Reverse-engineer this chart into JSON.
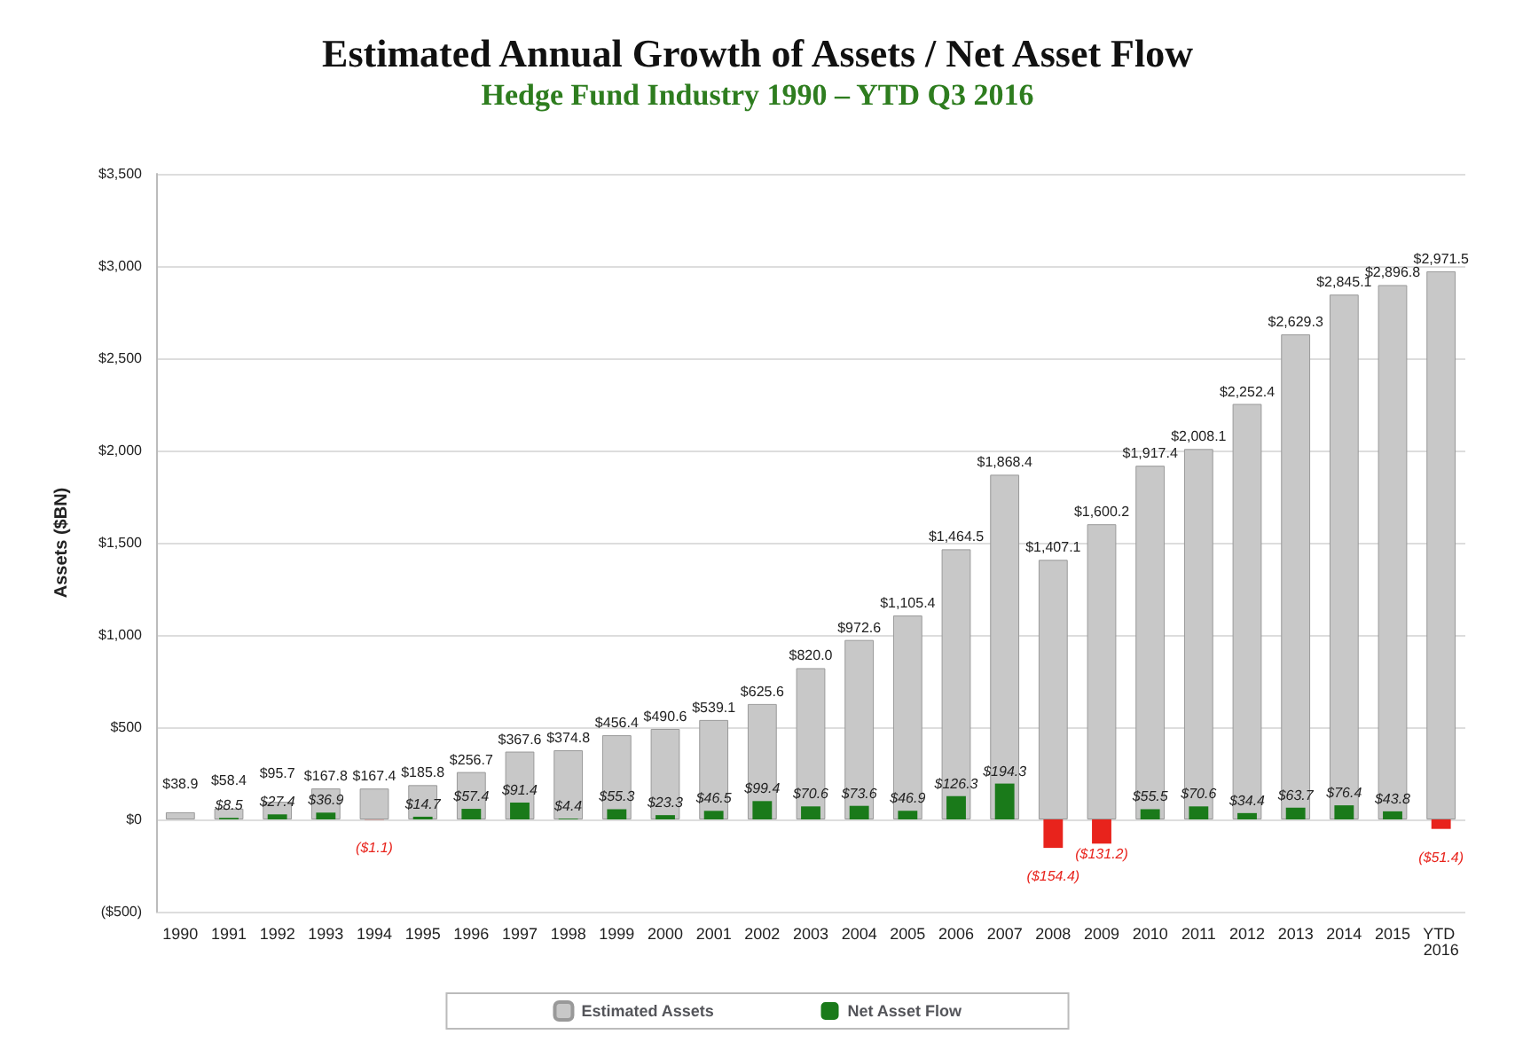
{
  "chart_data": {
    "type": "bar",
    "title": "Estimated Annual Growth of Assets / Net Asset Flow",
    "subtitle": "Hedge Fund Industry 1990 – YTD Q3 2016",
    "ylabel": "Assets ($BN)",
    "categories": [
      "1990",
      "1991",
      "1992",
      "1993",
      "1994",
      "1995",
      "1996",
      "1997",
      "1998",
      "1999",
      "2000",
      "2001",
      "2002",
      "2003",
      "2004",
      "2005",
      "2006",
      "2007",
      "2008",
      "2009",
      "2010",
      "2011",
      "2012",
      "2013",
      "2014",
      "2015",
      "YTD 2016"
    ],
    "series": [
      {
        "name": "Estimated Assets",
        "color": "#c8c8c8",
        "values": [
          38.9,
          58.4,
          95.7,
          167.8,
          167.4,
          185.8,
          256.7,
          367.6,
          374.8,
          456.4,
          490.6,
          539.1,
          625.6,
          820.0,
          972.6,
          1105.4,
          1464.5,
          1868.4,
          1407.1,
          1600.2,
          1917.4,
          2008.1,
          2252.4,
          2629.3,
          2845.1,
          2896.8,
          2971.5
        ],
        "value_labels": [
          "$38.9",
          "$58.4",
          "$95.7",
          "$167.8",
          "$167.4",
          "$185.8",
          "$256.7",
          "$367.6",
          "$374.8",
          "$456.4",
          "$490.6",
          "$539.1",
          "$625.6",
          "$820.0",
          "$972.6",
          "$1,105.4",
          "$1,464.5",
          "$1,868.4",
          "$1,407.1",
          "$1,600.2",
          "$1,917.4",
          "$2,008.1",
          "$2,252.4",
          "$2,629.3",
          "$2,845.1",
          "$2,896.8",
          "$2,971.5"
        ]
      },
      {
        "name": "Net Asset Flow",
        "color": "#1a7a1a",
        "colors": [
          "#1a7a1a",
          "#1a7a1a",
          "#1a7a1a",
          "#1a7a1a",
          "#e8231c",
          "#1a7a1a",
          "#1a7a1a",
          "#1a7a1a",
          "#1a7a1a",
          "#1a7a1a",
          "#1a7a1a",
          "#1a7a1a",
          "#1a7a1a",
          "#1a7a1a",
          "#1a7a1a",
          "#1a7a1a",
          "#1a7a1a",
          "#1a7a1a",
          "#e8231c",
          "#e8231c",
          "#1a7a1a",
          "#1a7a1a",
          "#1a7a1a",
          "#1a7a1a",
          "#1a7a1a",
          "#1a7a1a",
          "#e8231c"
        ],
        "values": [
          null,
          8.5,
          27.4,
          36.9,
          -1.1,
          14.7,
          57.4,
          91.4,
          4.4,
          55.3,
          23.3,
          46.5,
          99.4,
          70.6,
          73.6,
          46.9,
          126.3,
          194.3,
          -154.4,
          -131.2,
          55.5,
          70.6,
          34.4,
          63.7,
          76.4,
          43.8,
          -51.4
        ],
        "value_labels": [
          null,
          "$8.5",
          "$27.4",
          "$36.9",
          "($1.1)",
          "$14.7",
          "$57.4",
          "$91.4",
          "$4.4",
          "$55.3",
          "$23.3",
          "$46.5",
          "$99.4",
          "$70.6",
          "$73.6",
          "$46.9",
          "$126.3",
          "$194.3",
          "($154.4)",
          "($131.2)",
          "$55.5",
          "$70.6",
          "$34.4",
          "$63.7",
          "$76.4",
          "$43.8",
          "($51.4)"
        ]
      }
    ],
    "ylim": [
      -500,
      3500
    ],
    "yticks": [
      {
        "value": -500,
        "label": "($500)"
      },
      {
        "value": 0,
        "label": "$0"
      },
      {
        "value": 500,
        "label": "$500"
      },
      {
        "value": 1000,
        "label": "$1,000"
      },
      {
        "value": 1500,
        "label": "$1,500"
      },
      {
        "value": 2000,
        "label": "$2,000"
      },
      {
        "value": 2500,
        "label": "$2,500"
      },
      {
        "value": 3000,
        "label": "$3,000"
      },
      {
        "value": 3500,
        "label": "$3,500"
      }
    ],
    "grid": "y",
    "legend": "bottom"
  }
}
